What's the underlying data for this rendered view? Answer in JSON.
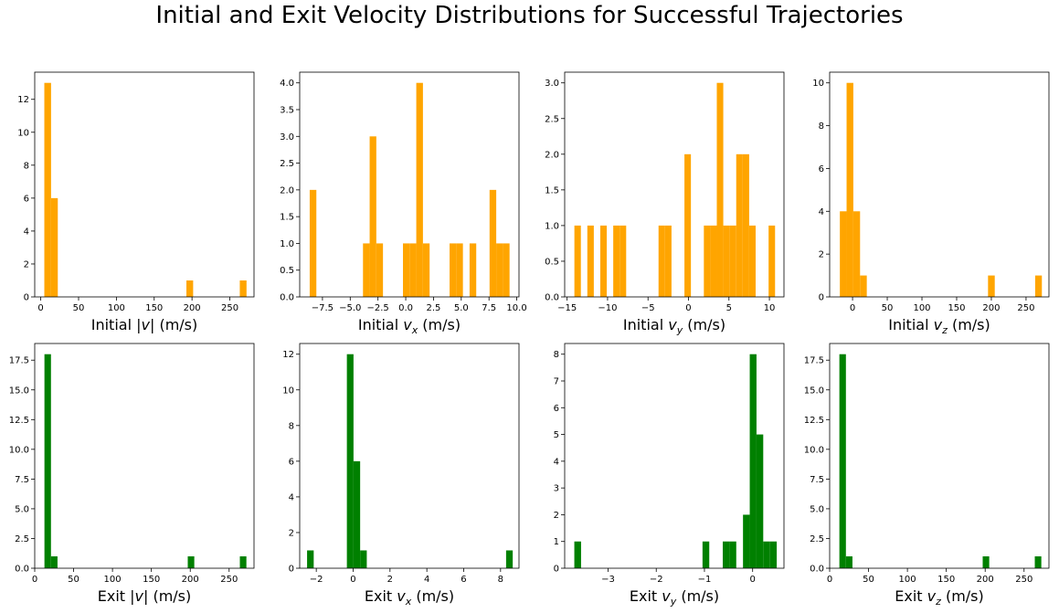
{
  "title": "Initial and Exit Velocity Distributions for Successful Trajectories",
  "colors": {
    "initial": "#ffa500",
    "exit": "#008000"
  },
  "chart_data": [
    {
      "type": "bar",
      "color": "initial",
      "xlabel": {
        "pre": "Initial |",
        "var": "v",
        "sub": "",
        "post": "| (m/s)"
      },
      "xlim": [
        -8,
        282
      ],
      "ylim": [
        0,
        13.65
      ],
      "xticks": [
        {
          "v": 0,
          "l": "0"
        },
        {
          "v": 50,
          "l": "50"
        },
        {
          "v": 100,
          "l": "100"
        },
        {
          "v": 150,
          "l": "150"
        },
        {
          "v": 200,
          "l": "200"
        },
        {
          "v": 250,
          "l": "250"
        }
      ],
      "yticks": [
        {
          "v": 0,
          "l": "0"
        },
        {
          "v": 2,
          "l": "2"
        },
        {
          "v": 4,
          "l": "4"
        },
        {
          "v": 6,
          "l": "6"
        },
        {
          "v": 8,
          "l": "8"
        },
        {
          "v": 10,
          "l": "10"
        },
        {
          "v": 12,
          "l": "12"
        }
      ],
      "bins": [
        [
          4.7,
          13.6,
          13
        ],
        [
          13.6,
          22.5,
          6
        ],
        [
          192.6,
          201.5,
          1
        ],
        [
          263.2,
          272.1,
          1
        ]
      ]
    },
    {
      "type": "bar",
      "color": "initial",
      "xlabel": {
        "pre": "Initial ",
        "var": "v",
        "sub": "x",
        "post": " (m/s)"
      },
      "xlim": [
        -9.55,
        10.2
      ],
      "ylim": [
        0,
        4.2
      ],
      "xticks": [
        {
          "v": -7.5,
          "l": "−7.5"
        },
        {
          "v": -5,
          "l": "−5.0"
        },
        {
          "v": -2.5,
          "l": "−2.5"
        },
        {
          "v": 0,
          "l": "0.0"
        },
        {
          "v": 2.5,
          "l": "2.5"
        },
        {
          "v": 5,
          "l": "5.0"
        },
        {
          "v": 7.5,
          "l": "7.5"
        },
        {
          "v": 10,
          "l": "10.0"
        }
      ],
      "yticks": [
        {
          "v": 0,
          "l": "0.0"
        },
        {
          "v": 0.5,
          "l": "0.5"
        },
        {
          "v": 1,
          "l": "1.0"
        },
        {
          "v": 1.5,
          "l": "1.5"
        },
        {
          "v": 2,
          "l": "2.0"
        },
        {
          "v": 2.5,
          "l": "2.5"
        },
        {
          "v": 3,
          "l": "3.0"
        },
        {
          "v": 3.5,
          "l": "3.5"
        },
        {
          "v": 4,
          "l": "4.0"
        }
      ],
      "bins": [
        [
          -8.65,
          -8.05,
          2
        ],
        [
          -3.85,
          -3.25,
          1
        ],
        [
          -3.25,
          -2.65,
          3
        ],
        [
          -2.65,
          -2.05,
          1
        ],
        [
          -0.25,
          0.35,
          1
        ],
        [
          0.35,
          0.95,
          1
        ],
        [
          0.95,
          1.55,
          4
        ],
        [
          1.55,
          2.15,
          1
        ],
        [
          3.95,
          4.55,
          1
        ],
        [
          4.55,
          5.15,
          1
        ],
        [
          5.75,
          6.35,
          1
        ],
        [
          7.55,
          8.15,
          2
        ],
        [
          8.15,
          8.75,
          1
        ],
        [
          8.75,
          9.35,
          1
        ]
      ]
    },
    {
      "type": "bar",
      "color": "initial",
      "xlabel": {
        "pre": "Initial ",
        "var": "v",
        "sub": "y",
        "post": " (m/s)"
      },
      "xlim": [
        -15.3,
        11.8
      ],
      "ylim": [
        0,
        3.15
      ],
      "xticks": [
        {
          "v": -15,
          "l": "−15"
        },
        {
          "v": -10,
          "l": "−10"
        },
        {
          "v": -5,
          "l": "−5"
        },
        {
          "v": 0,
          "l": "0"
        },
        {
          "v": 5,
          "l": "5"
        },
        {
          "v": 10,
          "l": "10"
        }
      ],
      "yticks": [
        {
          "v": 0,
          "l": "0.0"
        },
        {
          "v": 0.5,
          "l": "0.5"
        },
        {
          "v": 1,
          "l": "1.0"
        },
        {
          "v": 1.5,
          "l": "1.5"
        },
        {
          "v": 2,
          "l": "2.0"
        },
        {
          "v": 2.5,
          "l": "2.5"
        },
        {
          "v": 3,
          "l": "3.0"
        }
      ],
      "bins": [
        [
          -14.1,
          -13.3,
          1
        ],
        [
          -12.5,
          -11.7,
          1
        ],
        [
          -10.9,
          -10.1,
          1
        ],
        [
          -9.3,
          -8.5,
          1
        ],
        [
          -8.5,
          -7.7,
          1
        ],
        [
          -3.7,
          -2.9,
          1
        ],
        [
          -2.9,
          -2.1,
          1
        ],
        [
          -0.5,
          0.3,
          2
        ],
        [
          1.9,
          2.7,
          1
        ],
        [
          2.7,
          3.5,
          1
        ],
        [
          3.5,
          4.3,
          3
        ],
        [
          4.3,
          5.1,
          1
        ],
        [
          5.1,
          5.9,
          1
        ],
        [
          5.9,
          6.7,
          2
        ],
        [
          6.7,
          7.5,
          2
        ],
        [
          7.5,
          8.3,
          1
        ],
        [
          9.9,
          10.7,
          1
        ]
      ]
    },
    {
      "type": "bar",
      "color": "initial",
      "xlabel": {
        "pre": "Initial ",
        "var": "v",
        "sub": "z",
        "post": " (m/s)"
      },
      "xlim": [
        -33,
        283
      ],
      "ylim": [
        0,
        10.5
      ],
      "xticks": [
        {
          "v": 0,
          "l": "0"
        },
        {
          "v": 50,
          "l": "50"
        },
        {
          "v": 100,
          "l": "100"
        },
        {
          "v": 150,
          "l": "150"
        },
        {
          "v": 200,
          "l": "200"
        },
        {
          "v": 250,
          "l": "250"
        }
      ],
      "yticks": [
        {
          "v": 0,
          "l": "0"
        },
        {
          "v": 2,
          "l": "2"
        },
        {
          "v": 4,
          "l": "4"
        },
        {
          "v": 6,
          "l": "6"
        },
        {
          "v": 8,
          "l": "8"
        },
        {
          "v": 10,
          "l": "10"
        }
      ],
      "bins": [
        [
          -18.3,
          -8.6,
          4
        ],
        [
          -8.6,
          1.1,
          10
        ],
        [
          1.1,
          10.8,
          4
        ],
        [
          10.8,
          20.5,
          1
        ],
        [
          195.2,
          204.9,
          1
        ],
        [
          263.1,
          272.8,
          1
        ]
      ]
    },
    {
      "type": "bar",
      "color": "exit",
      "xlabel": {
        "pre": "Exit |",
        "var": "v",
        "sub": "",
        "post": "| (m/s)"
      },
      "xlim": [
        0,
        282
      ],
      "ylim": [
        0,
        18.9
      ],
      "xticks": [
        {
          "v": 0,
          "l": "0"
        },
        {
          "v": 50,
          "l": "50"
        },
        {
          "v": 100,
          "l": "100"
        },
        {
          "v": 150,
          "l": "150"
        },
        {
          "v": 200,
          "l": "200"
        },
        {
          "v": 250,
          "l": "250"
        }
      ],
      "yticks": [
        {
          "v": 0,
          "l": "0.0"
        },
        {
          "v": 2.5,
          "l": "2.5"
        },
        {
          "v": 5,
          "l": "5.0"
        },
        {
          "v": 7.5,
          "l": "7.5"
        },
        {
          "v": 10,
          "l": "10.0"
        },
        {
          "v": 12.5,
          "l": "12.5"
        },
        {
          "v": 15,
          "l": "15.0"
        },
        {
          "v": 17.5,
          "l": "17.5"
        }
      ],
      "bins": [
        [
          12.5,
          20.9,
          18
        ],
        [
          20.9,
          29.3,
          1
        ],
        [
          196.8,
          205.2,
          1
        ],
        [
          263.8,
          272.2,
          1
        ]
      ]
    },
    {
      "type": "bar",
      "color": "exit",
      "xlabel": {
        "pre": "Exit ",
        "var": "v",
        "sub": "x",
        "post": " (m/s)"
      },
      "xlim": [
        -2.9,
        9.0
      ],
      "ylim": [
        0,
        12.6
      ],
      "xticks": [
        {
          "v": -2,
          "l": "−2"
        },
        {
          "v": 0,
          "l": "0"
        },
        {
          "v": 2,
          "l": "2"
        },
        {
          "v": 4,
          "l": "4"
        },
        {
          "v": 6,
          "l": "6"
        },
        {
          "v": 8,
          "l": "8"
        }
      ],
      "yticks": [
        {
          "v": 0,
          "l": "0"
        },
        {
          "v": 2,
          "l": "2"
        },
        {
          "v": 4,
          "l": "4"
        },
        {
          "v": 6,
          "l": "6"
        },
        {
          "v": 8,
          "l": "8"
        },
        {
          "v": 10,
          "l": "10"
        },
        {
          "v": 12,
          "l": "12"
        }
      ],
      "bins": [
        [
          -2.5,
          -2.14,
          1
        ],
        [
          -0.34,
          0.02,
          12
        ],
        [
          0.02,
          0.38,
          6
        ],
        [
          0.38,
          0.74,
          1
        ],
        [
          8.3,
          8.66,
          1
        ]
      ]
    },
    {
      "type": "bar",
      "color": "exit",
      "xlabel": {
        "pre": "Exit ",
        "var": "v",
        "sub": "y",
        "post": " (m/s)"
      },
      "xlim": [
        -3.9,
        0.65
      ],
      "ylim": [
        0,
        8.4
      ],
      "xticks": [
        {
          "v": -3,
          "l": "−3"
        },
        {
          "v": -2,
          "l": "−2"
        },
        {
          "v": -1,
          "l": "−1"
        },
        {
          "v": 0,
          "l": "0"
        }
      ],
      "yticks": [
        {
          "v": 0,
          "l": "0"
        },
        {
          "v": 1,
          "l": "1"
        },
        {
          "v": 2,
          "l": "2"
        },
        {
          "v": 3,
          "l": "3"
        },
        {
          "v": 4,
          "l": "4"
        },
        {
          "v": 5,
          "l": "5"
        },
        {
          "v": 6,
          "l": "6"
        },
        {
          "v": 7,
          "l": "7"
        },
        {
          "v": 8,
          "l": "8"
        }
      ],
      "bins": [
        [
          -3.7,
          -3.56,
          1
        ],
        [
          -1.04,
          -0.9,
          1
        ],
        [
          -0.62,
          -0.48,
          1
        ],
        [
          -0.48,
          -0.34,
          1
        ],
        [
          -0.2,
          -0.06,
          2
        ],
        [
          -0.06,
          0.08,
          8
        ],
        [
          0.08,
          0.22,
          5
        ],
        [
          0.22,
          0.36,
          1
        ],
        [
          0.36,
          0.5,
          1
        ]
      ]
    },
    {
      "type": "bar",
      "color": "exit",
      "xlabel": {
        "pre": "Exit ",
        "var": "v",
        "sub": "z",
        "post": " (m/s)"
      },
      "xlim": [
        0,
        282
      ],
      "ylim": [
        0,
        18.9
      ],
      "xticks": [
        {
          "v": 0,
          "l": "0"
        },
        {
          "v": 50,
          "l": "50"
        },
        {
          "v": 100,
          "l": "100"
        },
        {
          "v": 150,
          "l": "150"
        },
        {
          "v": 200,
          "l": "200"
        },
        {
          "v": 250,
          "l": "250"
        }
      ],
      "yticks": [
        {
          "v": 0,
          "l": "0.0"
        },
        {
          "v": 2.5,
          "l": "2.5"
        },
        {
          "v": 5,
          "l": "5.0"
        },
        {
          "v": 7.5,
          "l": "7.5"
        },
        {
          "v": 10,
          "l": "10.0"
        },
        {
          "v": 12.5,
          "l": "12.5"
        },
        {
          "v": 15,
          "l": "15.0"
        },
        {
          "v": 17.5,
          "l": "17.5"
        }
      ],
      "bins": [
        [
          12.5,
          20.9,
          18
        ],
        [
          20.9,
          29.3,
          1
        ],
        [
          196.8,
          205.2,
          1
        ],
        [
          263.8,
          272.2,
          1
        ]
      ]
    }
  ]
}
